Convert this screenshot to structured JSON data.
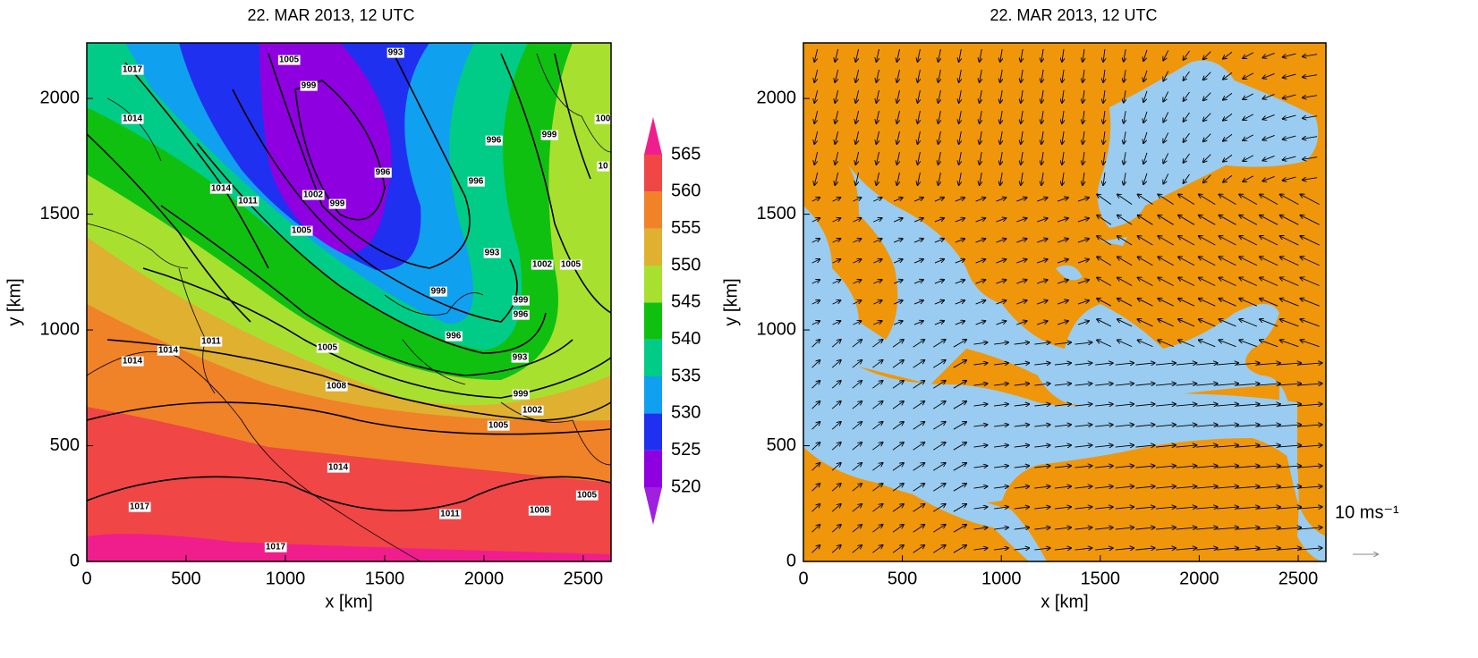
{
  "panels": [
    {
      "title": "22. MAR 2013, 12 UTC",
      "xlabel": "x [km]",
      "ylabel": "y [km]",
      "xlim": [
        0,
        2640
      ],
      "ylim": [
        0,
        2240
      ],
      "xticks": [
        0,
        500,
        1000,
        1500,
        2000,
        2500
      ],
      "yticks": [
        0,
        500,
        1000,
        1500,
        2000
      ],
      "colorbar": {
        "levels": [
          520,
          525,
          530,
          535,
          540,
          545,
          550,
          555,
          560,
          565
        ],
        "colors": [
          "#a020e0",
          "#8f00e0",
          "#2030f0",
          "#10a0f0",
          "#00cc88",
          "#10c010",
          "#a8e030",
          "#e0b030",
          "#f08228",
          "#f04646",
          "#f01e8c"
        ]
      },
      "contour_labels": [
        "1017",
        "1014",
        "1005",
        "993",
        "999",
        "996",
        "999",
        "100",
        "10",
        "1014",
        "1011",
        "996",
        "996",
        "1002",
        "999",
        "1005",
        "993",
        "1002",
        "1005",
        "999",
        "999",
        "996",
        "996",
        "1011",
        "1014",
        "1014",
        "1005",
        "993",
        "1008",
        "999",
        "1002",
        "1005",
        "1014",
        "1017",
        "1011",
        "1008",
        "1005",
        "1017"
      ]
    },
    {
      "title": "22. MAR 2013, 12 UTC",
      "xlabel": "x [km]",
      "ylabel": "y [km]",
      "xlim": [
        0,
        2640
      ],
      "ylim": [
        0,
        2240
      ],
      "xticks": [
        0,
        500,
        1000,
        1500,
        2000,
        2500
      ],
      "yticks": [
        0,
        500,
        1000,
        1500,
        2000
      ],
      "land_color": "#f0960a",
      "sea_color": "#99ccf0",
      "vector_key_label": "10 ms⁻¹"
    }
  ]
}
